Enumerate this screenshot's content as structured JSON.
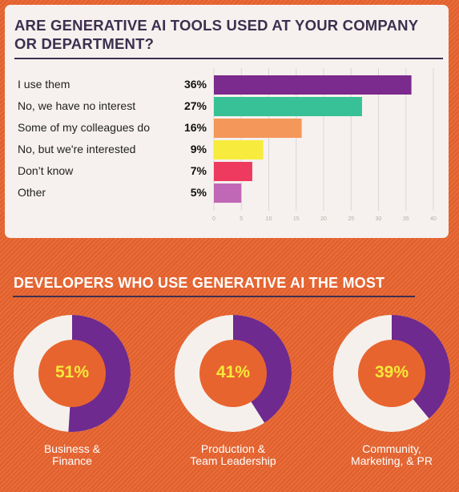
{
  "chart_data": [
    {
      "type": "bar",
      "orientation": "horizontal",
      "title": "ARE GENERATIVE AI TOOLS USED AT YOUR COMPANY OR DEPARTMENT?",
      "categories": [
        "I use them",
        "No, we have no interest",
        "Some of my colleagues do",
        "No, but we're interested",
        "Don’t know",
        "Other"
      ],
      "values": [
        36,
        27,
        16,
        9,
        7,
        5
      ],
      "value_labels": [
        "36%",
        "27%",
        "16%",
        "9%",
        "7%",
        "5%"
      ],
      "colors": [
        "#7b2a8d",
        "#38c096",
        "#f4975a",
        "#f7ec3d",
        "#ee3a5e",
        "#c068b5"
      ],
      "x_ticks": [
        "0",
        "5",
        "10",
        "15",
        "20",
        "25",
        "30",
        "35",
        "40"
      ],
      "xlim": [
        0,
        40
      ],
      "grid": true
    },
    {
      "type": "pie",
      "subtype": "donut",
      "title": "DEVELOPERS WHO USE GENERATIVE AI THE MOST",
      "items": [
        {
          "label": "Business &\nFinance",
          "value": 51,
          "value_label": "51%"
        },
        {
          "label": "Production &\nTeam Leadership",
          "value": 41,
          "value_label": "41%"
        },
        {
          "label": "Community,\nMarketing, & PR",
          "value": 39,
          "value_label": "39%"
        }
      ],
      "fill_color": "#6e2a8e",
      "track_color": "#f5f0ec",
      "center_color": "#e8642f",
      "value_text_color": "#f7e83a"
    }
  ]
}
